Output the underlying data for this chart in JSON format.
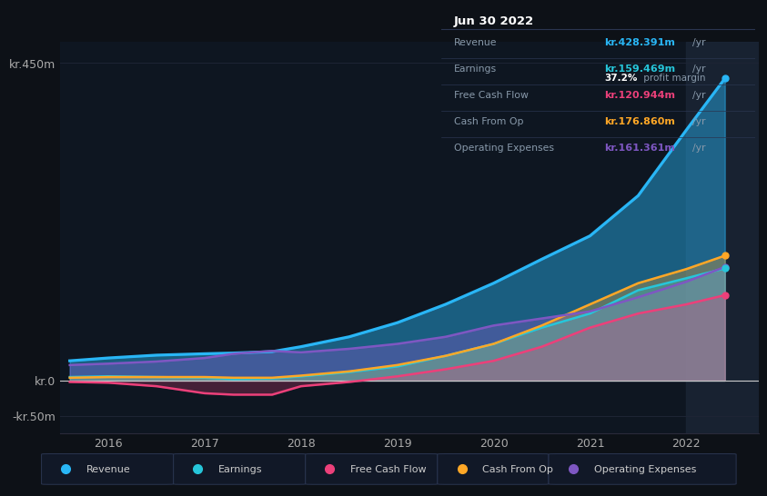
{
  "bg_color": "#0d1117",
  "plot_bg_color": "#0e1621",
  "grid_color": "#1e2535",
  "title_date": "Jun 30 2022",
  "years": [
    2015.6,
    2016.0,
    2016.5,
    2017.0,
    2017.3,
    2017.7,
    2018.0,
    2018.5,
    2019.0,
    2019.5,
    2020.0,
    2020.5,
    2021.0,
    2021.5,
    2022.0,
    2022.4
  ],
  "revenue": [
    28,
    32,
    36,
    38,
    39,
    41,
    48,
    62,
    82,
    108,
    138,
    172,
    205,
    262,
    355,
    428
  ],
  "earnings": [
    5,
    6,
    5,
    4,
    2,
    3,
    6,
    12,
    20,
    35,
    52,
    75,
    95,
    128,
    145,
    159
  ],
  "free_cash": [
    -2,
    -3,
    -8,
    -18,
    -20,
    -20,
    -8,
    -2,
    6,
    16,
    28,
    48,
    75,
    95,
    108,
    121
  ],
  "cash_op": [
    4,
    5,
    5,
    5,
    4,
    4,
    7,
    13,
    22,
    35,
    52,
    78,
    108,
    138,
    158,
    177
  ],
  "opex": [
    22,
    24,
    27,
    32,
    38,
    42,
    40,
    45,
    52,
    62,
    78,
    88,
    98,
    118,
    140,
    161
  ],
  "colors": {
    "revenue": "#29b6f6",
    "earnings": "#26c6da",
    "free_cash": "#ec407a",
    "cash_op": "#ffa726",
    "opex": "#7e57c2"
  },
  "ylim": [
    -75,
    480
  ],
  "ytick_vals": [
    -50,
    0,
    450
  ],
  "ytick_labels": [
    "-kr.50m",
    "kr.0",
    "kr.450m"
  ],
  "xlim": [
    2015.5,
    2022.75
  ],
  "xticks": [
    2016,
    2017,
    2018,
    2019,
    2020,
    2021,
    2022
  ],
  "highlight_x_start": 2022.0,
  "info_rows": [
    {
      "label": "Revenue",
      "value": "kr.428.391m",
      "unit": "/yr",
      "color": "#29b6f6",
      "sub": null
    },
    {
      "label": "Earnings",
      "value": "kr.159.469m",
      "unit": "/yr",
      "color": "#26c6da",
      "sub": "37.2% profit margin"
    },
    {
      "label": "Free Cash Flow",
      "value": "kr.120.944m",
      "unit": "/yr",
      "color": "#ec407a",
      "sub": null
    },
    {
      "label": "Cash From Op",
      "value": "kr.176.860m",
      "unit": "/yr",
      "color": "#ffa726",
      "sub": null
    },
    {
      "label": "Operating Expenses",
      "value": "kr.161.361m",
      "unit": "/yr",
      "color": "#7e57c2",
      "sub": null
    }
  ],
  "legend_items": [
    {
      "label": "Revenue",
      "color": "#29b6f6"
    },
    {
      "label": "Earnings",
      "color": "#26c6da"
    },
    {
      "label": "Free Cash Flow",
      "color": "#ec407a"
    },
    {
      "label": "Cash From Op",
      "color": "#ffa726"
    },
    {
      "label": "Operating Expenses",
      "color": "#7e57c2"
    }
  ]
}
